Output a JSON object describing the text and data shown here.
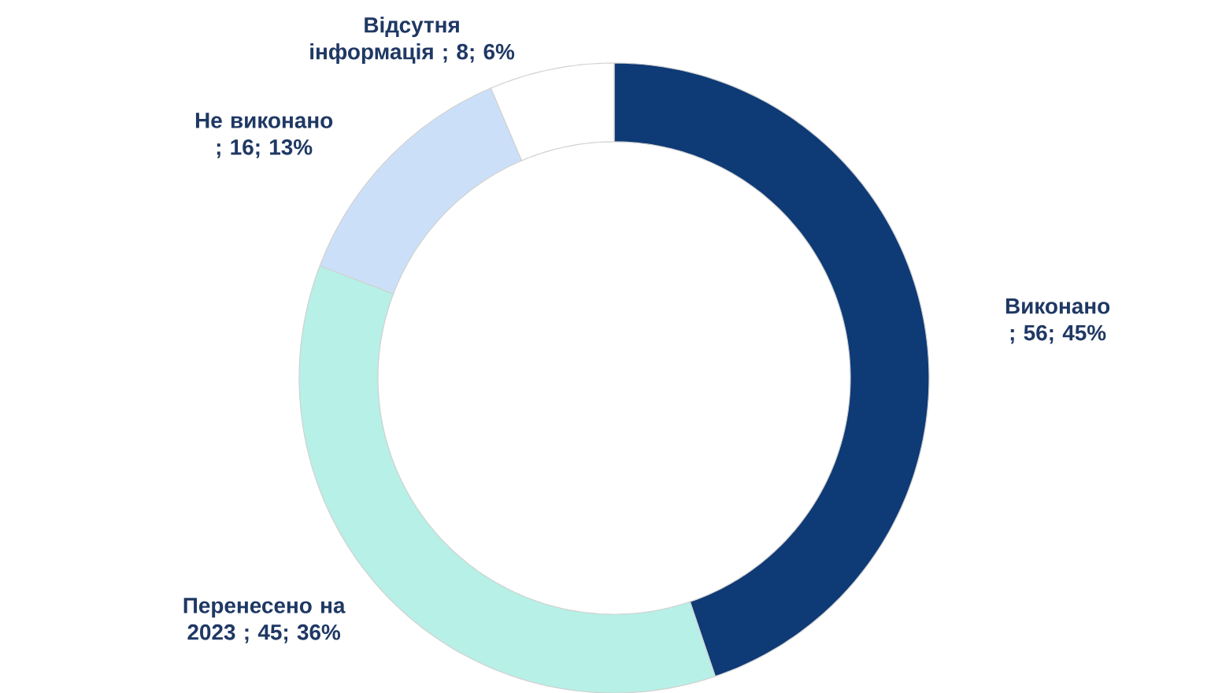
{
  "chart_data": {
    "type": "donut",
    "categories": [
      "Виконано",
      "Перенесено на 2023",
      "Не виконано",
      "Відсутня інформація"
    ],
    "values": [
      56,
      45,
      16,
      8
    ],
    "value_labels": [
      "; 56; 45%",
      "; 45; 36%",
      "; 16; 13%",
      "; 8; 6%"
    ],
    "colors": [
      "#0e3a76",
      "#b6f0e6",
      "#cbe0f8",
      "#ffffff"
    ]
  }
}
